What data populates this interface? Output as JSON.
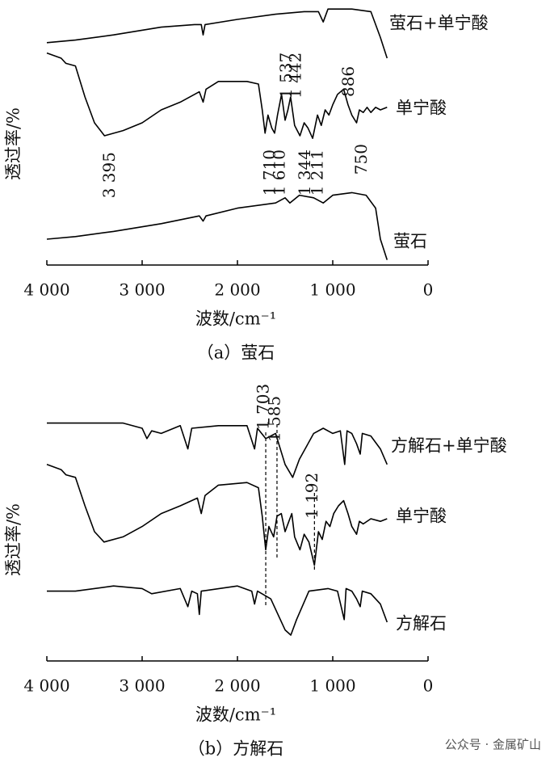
{
  "chart_data": [
    {
      "type": "line",
      "caption": "（a）萤石",
      "x_label": "波数/cm⁻¹",
      "y_label": "透过率/%",
      "xlim": [
        4000,
        0
      ],
      "ylim": [
        0,
        100
      ],
      "xticks": [
        {
          "value": 4000,
          "label": "4 000"
        },
        {
          "value": 3000,
          "label": "3 000"
        },
        {
          "value": 2000,
          "label": "2 000"
        },
        {
          "value": 1000,
          "label": "1 000"
        },
        0
      ],
      "series": [
        {
          "name": "萤石+单宁酸",
          "color": "#000000",
          "x": [
            4000,
            3700,
            3300,
            2800,
            2450,
            2380,
            2360,
            2340,
            2000,
            1600,
            1300,
            1150,
            1100,
            1050,
            950,
            800,
            600,
            500,
            430
          ],
          "values": [
            86,
            87,
            89,
            92,
            93,
            93,
            89,
            93,
            95,
            97,
            98,
            98,
            94,
            99,
            99,
            99,
            98,
            88,
            80
          ]
        },
        {
          "name": "单宁酸",
          "color": "#000000",
          "x": [
            4000,
            3850,
            3800,
            3700,
            3600,
            3500,
            3395,
            3200,
            3000,
            2800,
            2600,
            2400,
            2360,
            2330,
            2200,
            1900,
            1780,
            1740,
            1710,
            1680,
            1640,
            1610,
            1580,
            1537,
            1500,
            1470,
            1442,
            1400,
            1344,
            1300,
            1260,
            1211,
            1160,
            1120,
            1080,
            1040,
            1000,
            950,
            886,
            840,
            800,
            750,
            720,
            680,
            640,
            600,
            550,
            500,
            430
          ],
          "values": [
            82,
            80,
            78,
            77,
            65,
            55,
            50,
            52,
            55,
            60,
            63,
            67,
            63,
            68,
            71,
            71,
            70,
            60,
            51,
            58,
            53,
            51,
            58,
            66,
            56,
            60,
            65,
            54,
            50,
            55,
            53,
            49,
            58,
            54,
            60,
            58,
            62,
            66,
            68,
            62,
            58,
            55,
            60,
            59,
            61,
            59,
            61,
            60,
            61
          ]
        },
        {
          "name": "萤石",
          "color": "#000000",
          "x": [
            4000,
            3700,
            3300,
            2800,
            2400,
            2360,
            2330,
            2000,
            1600,
            1500,
            1450,
            1350,
            1200,
            1100,
            1000,
            800,
            650,
            550,
            500,
            430
          ],
          "values": [
            10,
            11,
            13,
            16,
            19,
            17,
            19,
            22,
            24,
            26,
            24,
            27,
            26,
            24,
            27,
            28,
            27,
            22,
            10,
            2
          ]
        }
      ],
      "annotations": [
        {
          "x": 3395,
          "label": "3 395"
        },
        {
          "x": 1710,
          "label": "1 710"
        },
        {
          "x": 1610,
          "label": "1 610"
        },
        {
          "x": 1537,
          "label": "1 537"
        },
        {
          "x": 1442,
          "label": "1 442"
        },
        {
          "x": 1344,
          "label": "1 344"
        },
        {
          "x": 1211,
          "label": "1 211"
        },
        {
          "x": 886,
          "label": "886"
        },
        {
          "x": 750,
          "label": "750"
        }
      ]
    },
    {
      "type": "line",
      "caption": "（b）方解石",
      "x_label": "波数/cm⁻¹",
      "y_label": "透过率/%",
      "xlim": [
        4000,
        0
      ],
      "ylim": [
        0,
        100
      ],
      "xticks": [
        {
          "value": 4000,
          "label": "4 000"
        },
        {
          "value": 3000,
          "label": "3 000"
        },
        {
          "value": 2000,
          "label": "2 000"
        },
        {
          "value": 1000,
          "label": "1 000"
        },
        0
      ],
      "series": [
        {
          "name": "方解石+单宁酸",
          "color": "#000000",
          "x": [
            4000,
            3200,
            3000,
            2950,
            2900,
            2800,
            2600,
            2520,
            2480,
            2200,
            1900,
            1820,
            1790,
            1703,
            1600,
            1500,
            1420,
            1350,
            1200,
            1100,
            1000,
            920,
            875,
            850,
            800,
            750,
            712,
            690,
            600,
            500,
            430
          ],
          "values": [
            92,
            92,
            90,
            86,
            89,
            88,
            91,
            82,
            90,
            91,
            91,
            82,
            90,
            86,
            88,
            76,
            71,
            78,
            88,
            90,
            88,
            89,
            76,
            89,
            88,
            84,
            80,
            88,
            87,
            82,
            76
          ]
        },
        {
          "name": "单宁酸",
          "color": "#000000",
          "x": [
            4000,
            3850,
            3800,
            3700,
            3600,
            3500,
            3400,
            3200,
            3000,
            2800,
            2600,
            2420,
            2380,
            2340,
            2200,
            1900,
            1780,
            1740,
            1703,
            1670,
            1620,
            1585,
            1540,
            1500,
            1460,
            1430,
            1400,
            1344,
            1300,
            1250,
            1192,
            1150,
            1110,
            1070,
            1030,
            990,
            940,
            886,
            840,
            800,
            750,
            720,
            680,
            600,
            500,
            430
          ],
          "values": [
            76,
            74,
            72,
            71,
            60,
            50,
            46,
            48,
            52,
            57,
            60,
            63,
            57,
            64,
            68,
            69,
            67,
            56,
            43,
            52,
            48,
            56,
            57,
            50,
            54,
            57,
            48,
            43,
            49,
            46,
            37,
            50,
            47,
            54,
            52,
            57,
            60,
            62,
            57,
            52,
            49,
            54,
            53,
            55,
            54,
            55
          ]
        },
        {
          "name": "方解石",
          "color": "#000000",
          "x": [
            4000,
            3700,
            3300,
            3000,
            2900,
            2600,
            2520,
            2480,
            2420,
            2400,
            2380,
            2000,
            1850,
            1820,
            1790,
            1650,
            1500,
            1440,
            1380,
            1250,
            1050,
            950,
            880,
            860,
            800,
            750,
            712,
            690,
            600,
            500,
            430
          ],
          "values": [
            27,
            27,
            29,
            28,
            26,
            28,
            21,
            27,
            26,
            18,
            27,
            29,
            27,
            22,
            27,
            24,
            12,
            10,
            16,
            27,
            28,
            27,
            16,
            28,
            27,
            24,
            21,
            27,
            26,
            22,
            15
          ]
        }
      ],
      "reference_lines": [
        {
          "value": 1703,
          "label": "1 703"
        },
        {
          "value": 1585,
          "label": "1 585"
        },
        {
          "value": 1192,
          "label": "1 192"
        }
      ]
    }
  ],
  "watermark": "公众号 · 金属矿山"
}
